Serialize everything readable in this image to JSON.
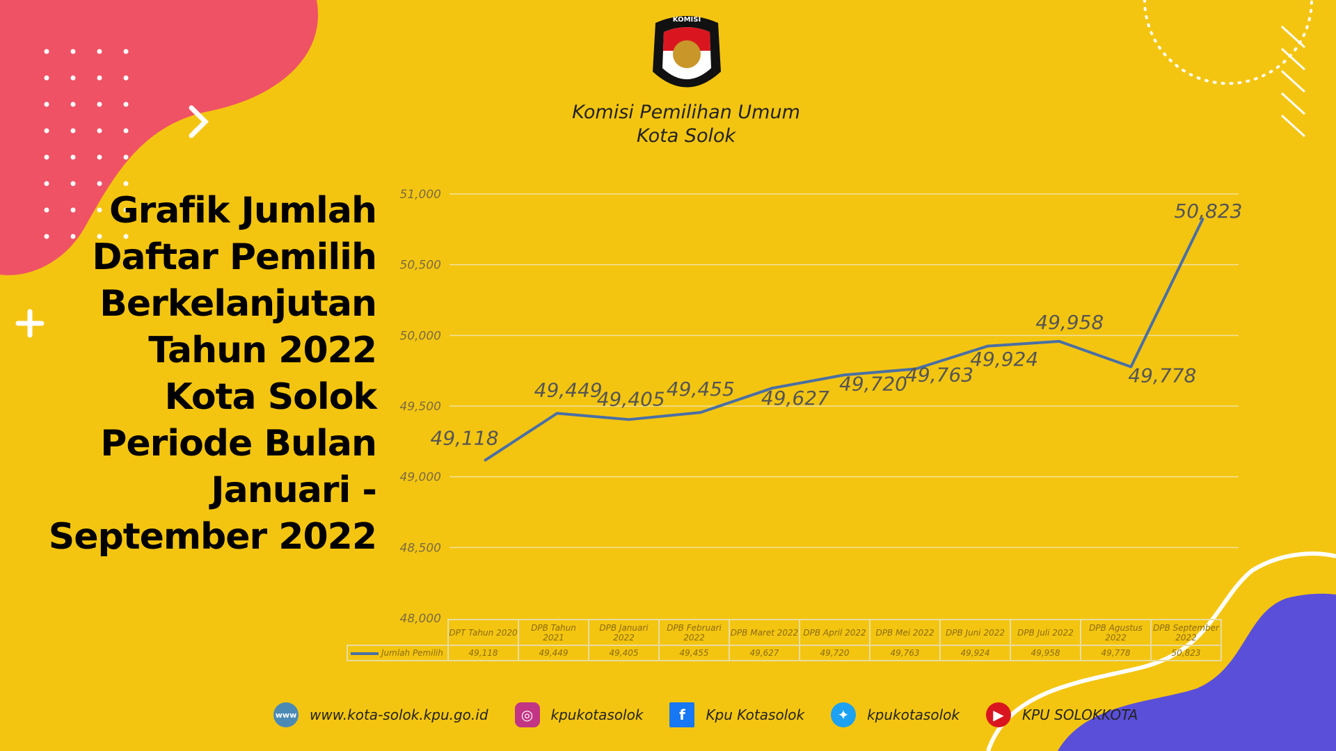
{
  "header": {
    "org_line1": "Komisi Pemilihan Umum",
    "org_line2": "Kota Solok",
    "logo_text": "KOMISI PEMILIHAN UMUM"
  },
  "title_lines": [
    "Grafik Jumlah",
    "Daftar Pemilih",
    "Berkelanjutan",
    "Tahun 2022",
    "Kota Solok",
    "Periode Bulan",
    "Januari -",
    "September 2022"
  ],
  "chart_data": {
    "type": "line",
    "categories": [
      "DPT Tahun 2020",
      "DPB Tahun 2021",
      "DPB Januari 2022",
      "DPB Februari 2022",
      "DPB Maret 2022",
      "DPB April 2022",
      "DPB Mei 2022",
      "DPB Juni 2022",
      "DPB Juli 2022",
      "DPB Agustus 2022",
      "DPB September 2022"
    ],
    "series": [
      {
        "name": "Jumlah Pemilih",
        "values": [
          49118,
          49449,
          49405,
          49455,
          49627,
          49720,
          49763,
          49924,
          49958,
          49778,
          50823
        ],
        "color": "#4a6fa5"
      }
    ],
    "data_labels": [
      "49,118",
      "49,449",
      "49,405",
      "49,455",
      "49,627",
      "49,720",
      "49,763",
      "49,924",
      "49,958",
      "49,778",
      "50,823"
    ],
    "yticks": [
      "48,000",
      "48,500",
      "49,000",
      "49,500",
      "50,000",
      "50,500",
      "51,000"
    ],
    "ylim": [
      48000,
      51000
    ],
    "grid": true,
    "legend": "data-table"
  },
  "footer": [
    {
      "icon": "globe-icon",
      "text": "www.kota-solok.kpu.go.id",
      "color": "#4a8ab5"
    },
    {
      "icon": "instagram-icon",
      "text": "kpukotasolok",
      "color": "#c13584"
    },
    {
      "icon": "facebook-icon",
      "text": "Kpu Kotasolok",
      "color": "#1877f2"
    },
    {
      "icon": "twitter-icon",
      "text": "kpukotasolok",
      "color": "#1da1f2"
    },
    {
      "icon": "youtube-icon",
      "text": "KPU SOLOKKOTA",
      "color": "#d9161f"
    }
  ],
  "colors": {
    "background": "#f4c510",
    "pink": "#ef5265",
    "purple": "#5a4fd8"
  }
}
